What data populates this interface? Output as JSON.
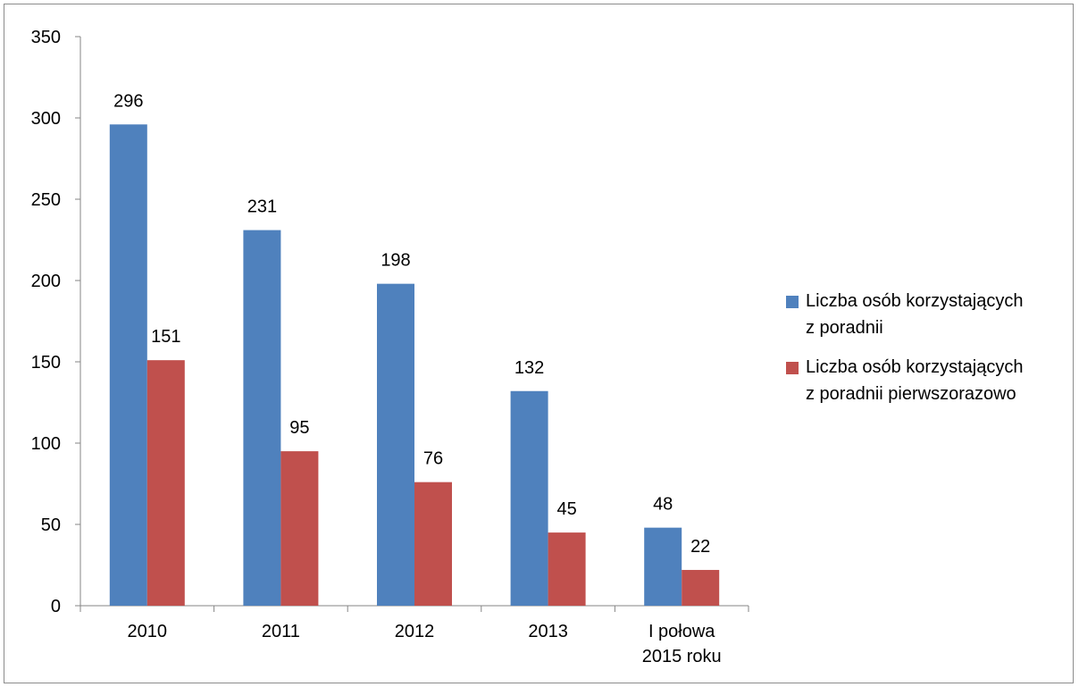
{
  "chart_data": {
    "type": "bar",
    "categories": [
      "2010",
      "2011",
      "2012",
      "2013",
      "I połowa 2015 roku"
    ],
    "series": [
      {
        "name": "Liczba osób korzystających z poradnii",
        "values": [
          296,
          231,
          198,
          132,
          48
        ],
        "color": "#4F81BD"
      },
      {
        "name": "Liczba osób korzystających z poradnii pierwszorazowo",
        "values": [
          151,
          95,
          76,
          45,
          22
        ],
        "color": "#C0504D"
      }
    ],
    "ylim": [
      0,
      350
    ],
    "yticks": [
      0,
      50,
      100,
      150,
      200,
      250,
      300,
      350
    ],
    "data_labels": true,
    "grid": false,
    "legend_position": "right",
    "title": "",
    "xlabel": "",
    "ylabel": ""
  },
  "legend": {
    "items": [
      {
        "line1": "Liczba osób korzystających",
        "line2": "z poradnii"
      },
      {
        "line1": "Liczba osób korzystających",
        "line2": "z poradnii pierwszorazowo"
      }
    ]
  }
}
